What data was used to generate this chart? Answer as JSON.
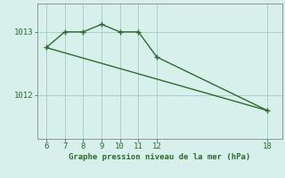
{
  "line1_x": [
    6,
    7,
    8,
    9,
    10,
    11,
    12,
    18
  ],
  "line1_y": [
    1012.75,
    1013.0,
    1013.0,
    1013.12,
    1013.0,
    1013.0,
    1012.6,
    1011.75
  ],
  "line2_x": [
    6,
    18
  ],
  "line2_y": [
    1012.75,
    1011.75
  ],
  "line_color": "#2d6a2d",
  "bg_color": "#d7f0eb",
  "grid_color": "#a8cfc8",
  "xlabel": "Graphe pression niveau de la mer (hPa)",
  "xticks": [
    6,
    7,
    8,
    9,
    10,
    11,
    12,
    18
  ],
  "yticks": [
    1012,
    1013
  ],
  "ylim": [
    1011.3,
    1013.45
  ],
  "xlim": [
    5.5,
    18.8
  ],
  "marker": "+",
  "markersize": 4,
  "linewidth": 1.0,
  "xlabel_fontsize": 6.5,
  "tick_fontsize": 6.5
}
